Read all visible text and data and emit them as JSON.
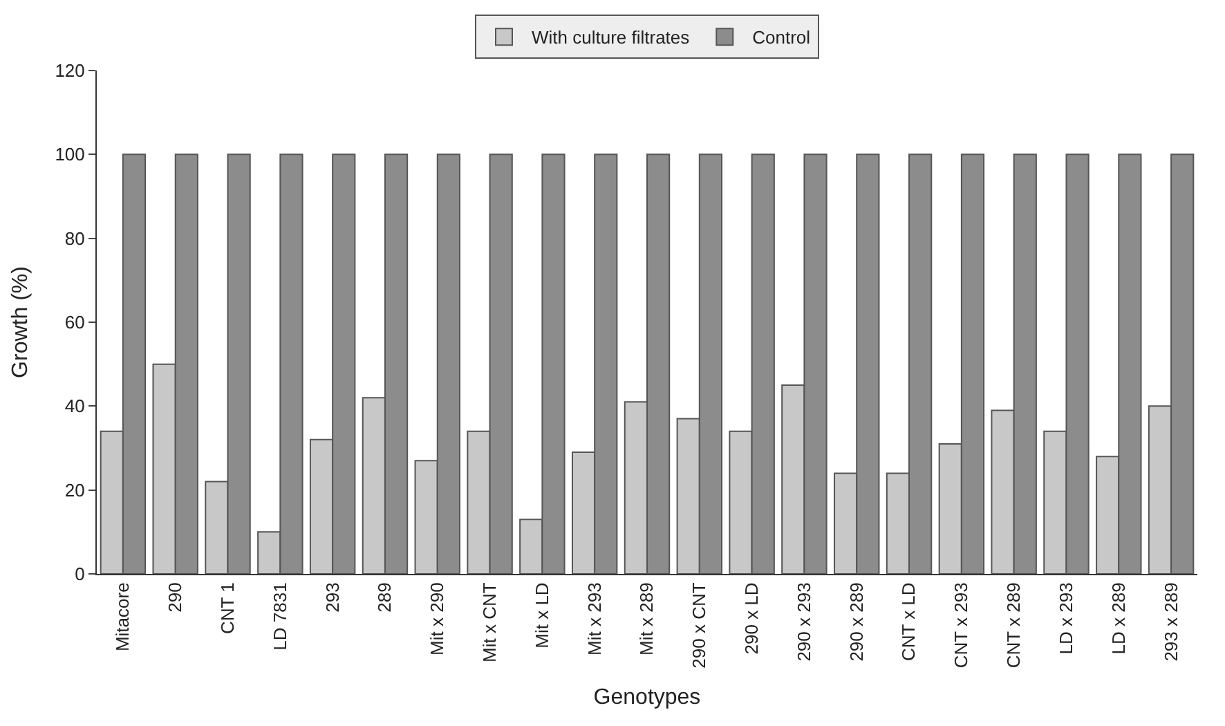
{
  "chart_data": {
    "type": "bar",
    "xlabel": "Genotypes",
    "ylabel": "Growth (%)",
    "categories": [
      "Mitacore",
      "290",
      "CNT 1",
      "LD 7831",
      "293",
      "289",
      "Mit x 290",
      "Mit x CNT",
      "Mit x LD",
      "Mit x 293",
      "Mit x 289",
      "290 x CNT",
      "290 x LD",
      "290 x 293",
      "290 x 289",
      "CNT x LD",
      "CNT x 293",
      "CNT x 289",
      "LD x 293",
      "LD x 289",
      "293 x 289"
    ],
    "series": [
      {
        "name": "With culture filtrates",
        "color": "#c8c8c8",
        "values": [
          34,
          50,
          22,
          10,
          32,
          42,
          27,
          34,
          13,
          29,
          41,
          37,
          34,
          45,
          24,
          24,
          31,
          39,
          34,
          28,
          40
        ]
      },
      {
        "name": "Control",
        "color": "#8c8c8c",
        "values": [
          100,
          100,
          100,
          100,
          100,
          100,
          100,
          100,
          100,
          100,
          100,
          100,
          100,
          100,
          100,
          100,
          100,
          100,
          100,
          100,
          100
        ]
      }
    ],
    "ylim": [
      0,
      120
    ],
    "yticks": [
      0,
      20,
      40,
      60,
      80,
      100,
      120
    ],
    "legend": "top"
  }
}
